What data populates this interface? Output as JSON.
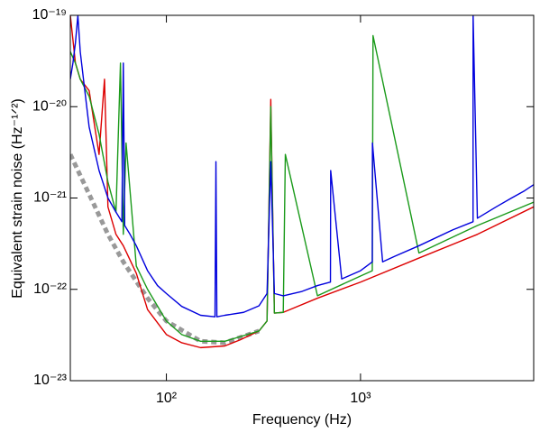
{
  "chart_data": {
    "type": "line",
    "x_label": "Frequency (Hz)",
    "y_label": "Equivalent strain noise (Hz⁻¹ᐟ²)",
    "log_x": true,
    "log_y": true,
    "xlim": [
      32,
      7800
    ],
    "ylim": [
      1e-23,
      1e-19
    ],
    "xticks": [
      {
        "value": 100,
        "label": "10²"
      },
      {
        "value": 1000,
        "label": "10³"
      }
    ],
    "yticks": [
      {
        "value": 1e-23,
        "label": "10⁻²³"
      },
      {
        "value": 1e-22,
        "label": "10⁻²²"
      },
      {
        "value": 1e-21,
        "label": "10⁻²¹"
      },
      {
        "value": 1e-20,
        "label": "10⁻²⁰"
      },
      {
        "value": 1e-19,
        "label": "10⁻¹⁹"
      }
    ],
    "series": [
      {
        "color": "#999999",
        "dashed": true,
        "x": [
          32,
          40,
          50,
          60,
          80,
          100,
          150,
          200,
          300
        ],
        "values": [
          3e-21,
          1.1e-21,
          4e-22,
          2e-22,
          8e-23,
          4.5e-23,
          2.7e-23,
          2.6e-23,
          3.5e-23
        ]
      },
      {
        "color": "#dd0000",
        "dashed": false,
        "x": [
          32,
          34,
          36,
          40,
          45,
          48,
          50,
          55,
          60,
          70,
          80,
          100,
          120,
          150,
          200,
          240,
          300,
          330,
          345,
          360,
          400,
          600,
          1000,
          2000,
          4000,
          7800
        ],
        "values": [
          1e-19,
          3e-20,
          2e-20,
          1.5e-20,
          3e-21,
          2e-20,
          8e-22,
          4e-22,
          3e-22,
          1.5e-22,
          6e-23,
          3.2e-23,
          2.6e-23,
          2.3e-23,
          2.4e-23,
          2.8e-23,
          3.5e-23,
          4.5e-23,
          1.2e-20,
          5.5e-23,
          5.6e-23,
          8e-23,
          1.2e-22,
          2.2e-22,
          4e-22,
          8e-22
        ]
      },
      {
        "color": "#1a9a1a",
        "dashed": false,
        "x": [
          32,
          34,
          36,
          40,
          45,
          50,
          55,
          58,
          60,
          62,
          70,
          80,
          100,
          120,
          150,
          200,
          300,
          330,
          345,
          360,
          400,
          410,
          600,
          1000,
          1150,
          1160,
          2000,
          4000,
          7800
        ],
        "values": [
          4e-20,
          3e-20,
          2e-20,
          1.3e-20,
          5e-21,
          1.5e-21,
          7e-22,
          3e-20,
          4e-22,
          4e-21,
          1.8e-22,
          1e-22,
          4.5e-23,
          3.2e-23,
          2.7e-23,
          2.7e-23,
          3.5e-23,
          4.5e-23,
          1e-20,
          5.5e-23,
          5.6e-23,
          3e-21,
          8.5e-23,
          1.4e-22,
          1.6e-22,
          6e-20,
          2.5e-22,
          5e-22,
          9e-22
        ]
      },
      {
        "color": "#0000dd",
        "dashed": false,
        "x": [
          32,
          33,
          34,
          35,
          36,
          38,
          40,
          45,
          50,
          55,
          59,
          60,
          61,
          65,
          70,
          80,
          90,
          100,
          120,
          150,
          178,
          180,
          182,
          200,
          250,
          300,
          330,
          345,
          360,
          400,
          500,
          600,
          700,
          702,
          800,
          1000,
          1150,
          1152,
          1300,
          1500,
          2000,
          3000,
          3800,
          3802,
          4000,
          5000,
          6000,
          7000,
          7800
        ],
        "values": [
          2e-20,
          3e-20,
          5e-20,
          1e-19,
          4e-20,
          1.5e-20,
          6e-21,
          2e-21,
          1e-21,
          7e-22,
          5.5e-22,
          3e-20,
          5e-22,
          4e-22,
          3e-22,
          1.6e-22,
          1.1e-22,
          9e-23,
          6.5e-23,
          5.2e-23,
          5e-23,
          2.5e-21,
          5e-23,
          5.2e-23,
          5.6e-23,
          6.6e-23,
          9e-23,
          2.5e-21,
          9e-23,
          8.5e-23,
          9.5e-23,
          1.1e-22,
          1.2e-22,
          2e-21,
          1.3e-22,
          1.6e-22,
          2e-22,
          4e-21,
          2e-22,
          2.3e-22,
          3e-22,
          4.5e-22,
          5.5e-22,
          1e-19,
          6e-22,
          8e-22,
          1e-21,
          1.2e-21,
          1.4e-21
        ]
      }
    ]
  }
}
